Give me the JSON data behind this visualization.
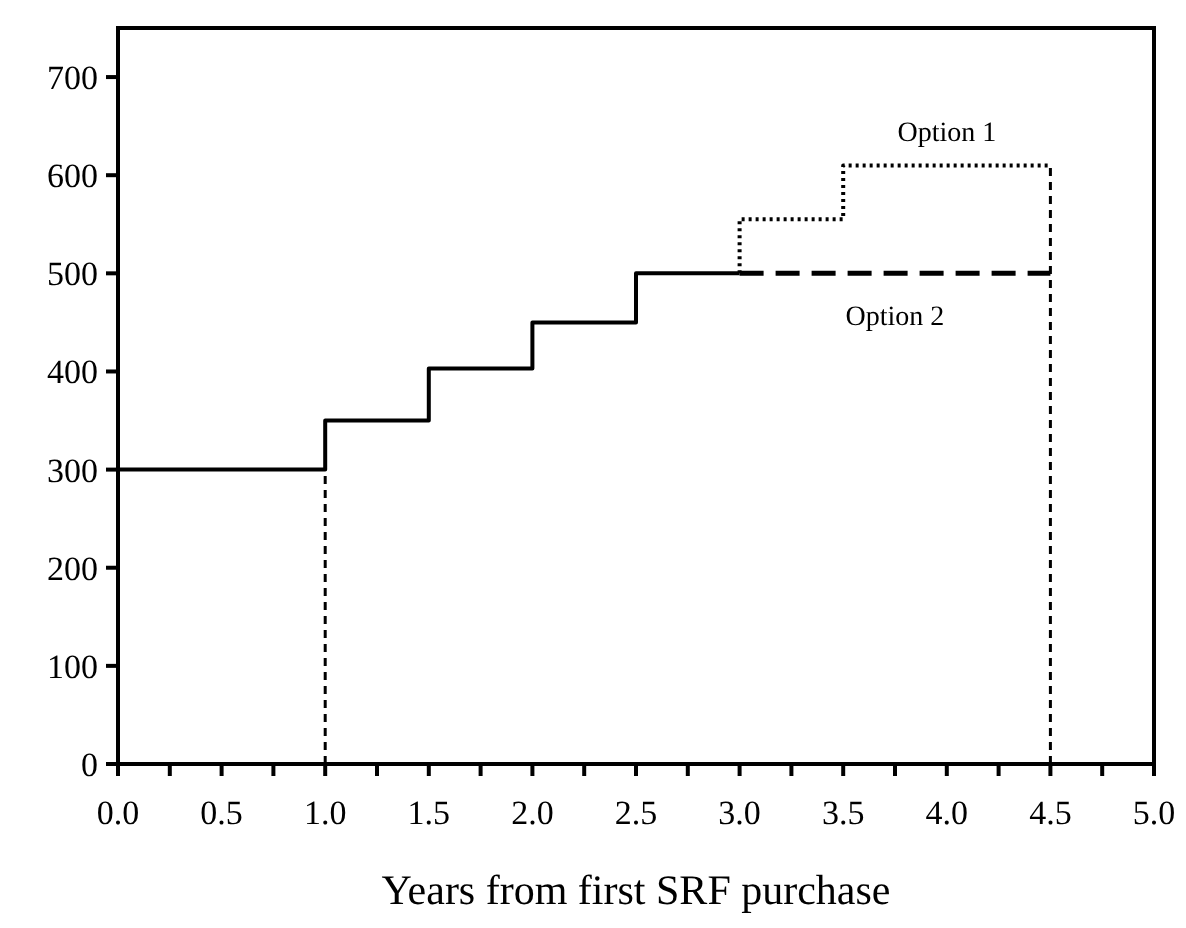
{
  "chart_data": {
    "type": "step",
    "xlabel": "Years from first SRF purchase",
    "xlim": [
      0,
      5
    ],
    "ylim": [
      0,
      750
    ],
    "xticks": [
      {
        "value": 0,
        "label": "0.0"
      },
      {
        "value": 0.25,
        "label": null
      },
      {
        "value": 0.5,
        "label": "0.5"
      },
      {
        "value": 0.75,
        "label": null
      },
      {
        "value": 1,
        "label": "1.0"
      },
      {
        "value": 1.25,
        "label": null
      },
      {
        "value": 1.5,
        "label": "1.5"
      },
      {
        "value": 1.75,
        "label": null
      },
      {
        "value": 2,
        "label": "2.0"
      },
      {
        "value": 2.25,
        "label": null
      },
      {
        "value": 2.5,
        "label": "2.5"
      },
      {
        "value": 2.75,
        "label": null
      },
      {
        "value": 3,
        "label": "3.0"
      },
      {
        "value": 3.25,
        "label": null
      },
      {
        "value": 3.5,
        "label": "3.5"
      },
      {
        "value": 3.75,
        "label": null
      },
      {
        "value": 4,
        "label": "4.0"
      },
      {
        "value": 4.25,
        "label": null
      },
      {
        "value": 4.5,
        "label": "4.5"
      },
      {
        "value": 4.75,
        "label": null
      },
      {
        "value": 5,
        "label": "5.0"
      }
    ],
    "yticks": [
      0,
      100,
      200,
      300,
      400,
      500,
      600,
      700
    ],
    "grid": false,
    "series": [
      {
        "color": "#000000",
        "line_style": "solid",
        "x": [
          0,
          1,
          1.5,
          2,
          2.5,
          3
        ],
        "values": [
          300,
          350,
          403,
          450,
          500,
          500
        ]
      },
      {
        "name": "Option 1",
        "color": "#000000",
        "line_style": "dotted",
        "x": [
          3,
          3,
          3.5,
          4.5
        ],
        "values": [
          500,
          555,
          610,
          610
        ]
      },
      {
        "name": "Option 2",
        "color": "#000000",
        "line_style": "dashed",
        "x": [
          3,
          4.5
        ],
        "values": [
          500,
          500
        ]
      },
      {
        "type": "line",
        "color": "#000000",
        "line_style": "dashed",
        "x": [
          1,
          1
        ],
        "values": [
          0,
          300
        ]
      },
      {
        "type": "line",
        "color": "#000000",
        "line_style": "dashed",
        "x": [
          4.5,
          4.5
        ],
        "values": [
          0,
          610
        ]
      }
    ]
  }
}
